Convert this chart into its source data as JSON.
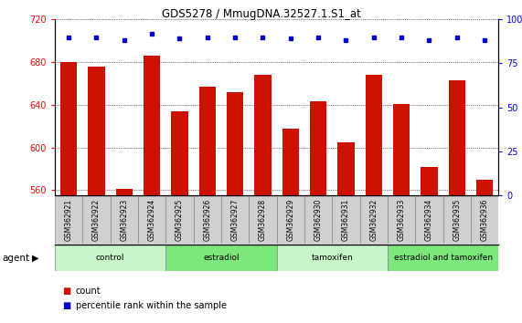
{
  "title": "GDS5278 / MmugDNA.32527.1.S1_at",
  "samples": [
    "GSM362921",
    "GSM362922",
    "GSM362923",
    "GSM362924",
    "GSM362925",
    "GSM362926",
    "GSM362927",
    "GSM362928",
    "GSM362929",
    "GSM362930",
    "GSM362931",
    "GSM362932",
    "GSM362933",
    "GSM362934",
    "GSM362935",
    "GSM362936"
  ],
  "counts": [
    680,
    676,
    561,
    686,
    634,
    657,
    652,
    668,
    618,
    643,
    605,
    668,
    641,
    582,
    663,
    570
  ],
  "percentile_ranks": [
    90,
    90,
    88,
    92,
    89,
    90,
    90,
    90,
    89,
    90,
    88,
    90,
    90,
    88,
    90,
    88
  ],
  "groups": [
    {
      "label": "control",
      "start": 0,
      "end": 3,
      "color": "#c8f5c8"
    },
    {
      "label": "estradiol",
      "start": 4,
      "end": 7,
      "color": "#7ce87c"
    },
    {
      "label": "tamoxifen",
      "start": 8,
      "end": 11,
      "color": "#c8f5c8"
    },
    {
      "label": "estradiol and tamoxifen",
      "start": 12,
      "end": 15,
      "color": "#7ce87c"
    }
  ],
  "ylim_left": [
    555,
    720
  ],
  "ylim_right": [
    0,
    100
  ],
  "yticks_left": [
    560,
    600,
    640,
    680,
    720
  ],
  "yticks_right": [
    0,
    25,
    50,
    75,
    100
  ],
  "bar_color": "#cc1100",
  "dot_color": "#0000cc",
  "bar_width": 0.6,
  "background_color": "#ffffff",
  "grid_color": "#000000",
  "tick_bg_color": "#d0d0d0",
  "tick_border_color": "#888888",
  "agent_label": "agent",
  "legend_count": "count",
  "legend_percentile": "percentile rank within the sample"
}
